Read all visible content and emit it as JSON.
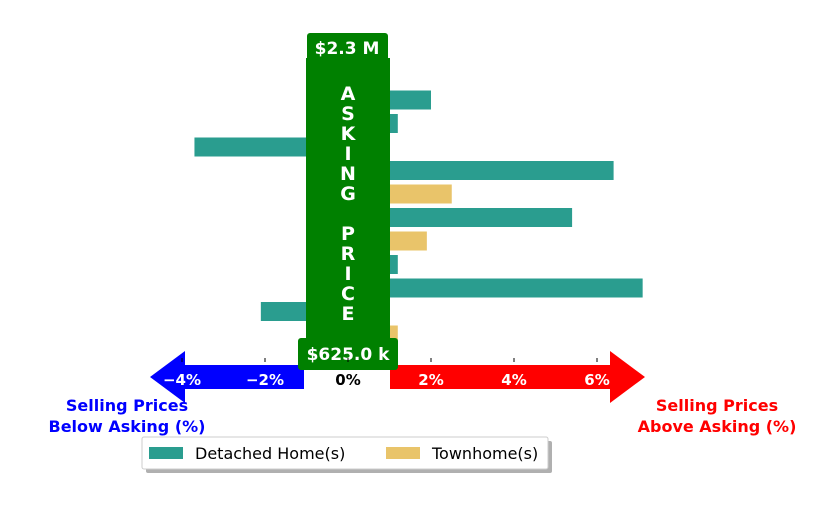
{
  "chart_data": {
    "type": "bar",
    "orientation": "horizontal",
    "xlim": [
      -5,
      7
    ],
    "xticks": [
      "−4%",
      "−2%",
      "0%",
      "2%",
      "4%",
      "6%"
    ],
    "tick_values": [
      -4,
      -2,
      0,
      2,
      4,
      6
    ],
    "center_label": "ASKING PRICE",
    "top_price_label": "$2.3 M",
    "bottom_price_label": "$625.0 k",
    "left_annotation": [
      "Selling Prices",
      "Below Asking (%)"
    ],
    "right_annotation": [
      "Selling Prices",
      "Above Asking (%)"
    ],
    "legend_position": "bottom-center",
    "series": [
      {
        "name": "Detached Home(s)",
        "color": "#2a9d8f",
        "bars": [
          {
            "row": 0,
            "value": -1.0
          },
          {
            "row": 1,
            "value": 2.0
          },
          {
            "row": 2,
            "value": 1.2
          },
          {
            "row": 3,
            "value": -3.7
          },
          {
            "row": 4,
            "value": 6.4
          },
          {
            "row": 6,
            "value": 5.4
          },
          {
            "row": 8,
            "value": 1.2
          },
          {
            "row": 9,
            "value": 7.1
          },
          {
            "row": 10,
            "value": -2.1
          }
        ]
      },
      {
        "name": "Townhome(s)",
        "color": "#e9c46a",
        "bars": [
          {
            "row": 5,
            "value": 2.5
          },
          {
            "row": 7,
            "value": 1.9
          },
          {
            "row": 11,
            "value": 1.2
          }
        ]
      }
    ],
    "colors": {
      "center_band": "#008000",
      "left_arrow": "#0000ff",
      "right_arrow": "#ff0000",
      "left_text": "#0000ff",
      "right_text": "#ff0000"
    }
  }
}
